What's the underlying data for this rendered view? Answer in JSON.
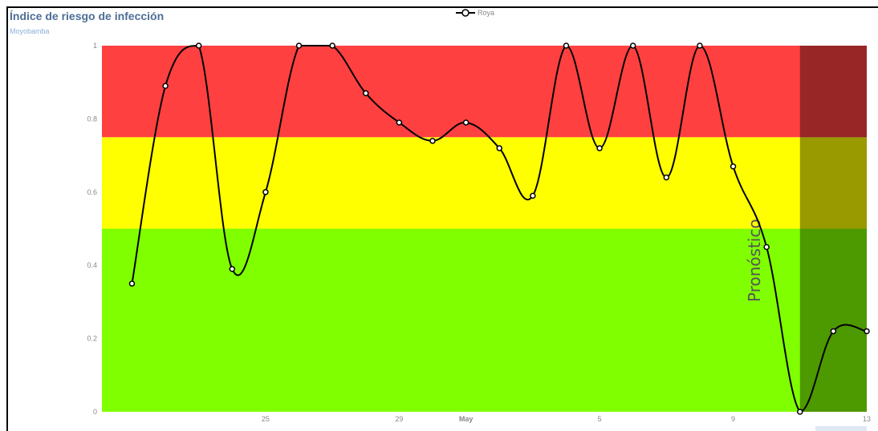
{
  "header": {
    "title": "Índice de riesgo de infección",
    "subtitle": "Moyobamba"
  },
  "legend": {
    "series_label": "Roya"
  },
  "forecast": {
    "label": "Pronóstico",
    "start_day_index": 19,
    "color": "#000000",
    "opacity": 0.4
  },
  "bands": [
    {
      "from": 0,
      "to": 0.5,
      "color": "#80ff00"
    },
    {
      "from": 0.5,
      "to": 0.75,
      "color": "#ffff00"
    },
    {
      "from": 0.75,
      "to": 1,
      "color": "#ff4040"
    }
  ],
  "chart_data": {
    "type": "line",
    "title": "Índice de riesgo de infección",
    "subtitle": "Moyobamba",
    "xlabel": "",
    "ylabel": "",
    "ylim": [
      0,
      1
    ],
    "yticks": [
      0,
      0.2,
      0.4,
      0.6,
      0.8,
      1
    ],
    "yticklabels": [
      "0",
      "0.2",
      "0.4",
      "0.6",
      "0.8",
      "1"
    ],
    "xticks": [
      {
        "label": "25",
        "bold": false,
        "day_index": 3
      },
      {
        "label": "29",
        "bold": false,
        "day_index": 7
      },
      {
        "label": "May",
        "bold": true,
        "day_index": 9
      },
      {
        "label": "5",
        "bold": false,
        "day_index": 13
      },
      {
        "label": "9",
        "bold": false,
        "day_index": 17
      },
      {
        "label": "13",
        "bold": false,
        "day_index": 21
      }
    ],
    "xlim": [
      -1.9,
      21
    ],
    "series": [
      {
        "name": "Roya",
        "color": "#000000",
        "x": [
          -1,
          0,
          1,
          2,
          3,
          4,
          5,
          6,
          7,
          8,
          9,
          10,
          11,
          12,
          13,
          14,
          15,
          16,
          17,
          18,
          19,
          20,
          21
        ],
        "values": [
          0.35,
          0.89,
          1,
          0.39,
          0.6,
          1,
          1,
          0.87,
          0.79,
          0.74,
          0.79,
          0.72,
          0.59,
          1,
          0.72,
          1,
          0.64,
          1,
          0.67,
          0.45,
          0,
          0.22,
          0.22
        ]
      }
    ]
  }
}
